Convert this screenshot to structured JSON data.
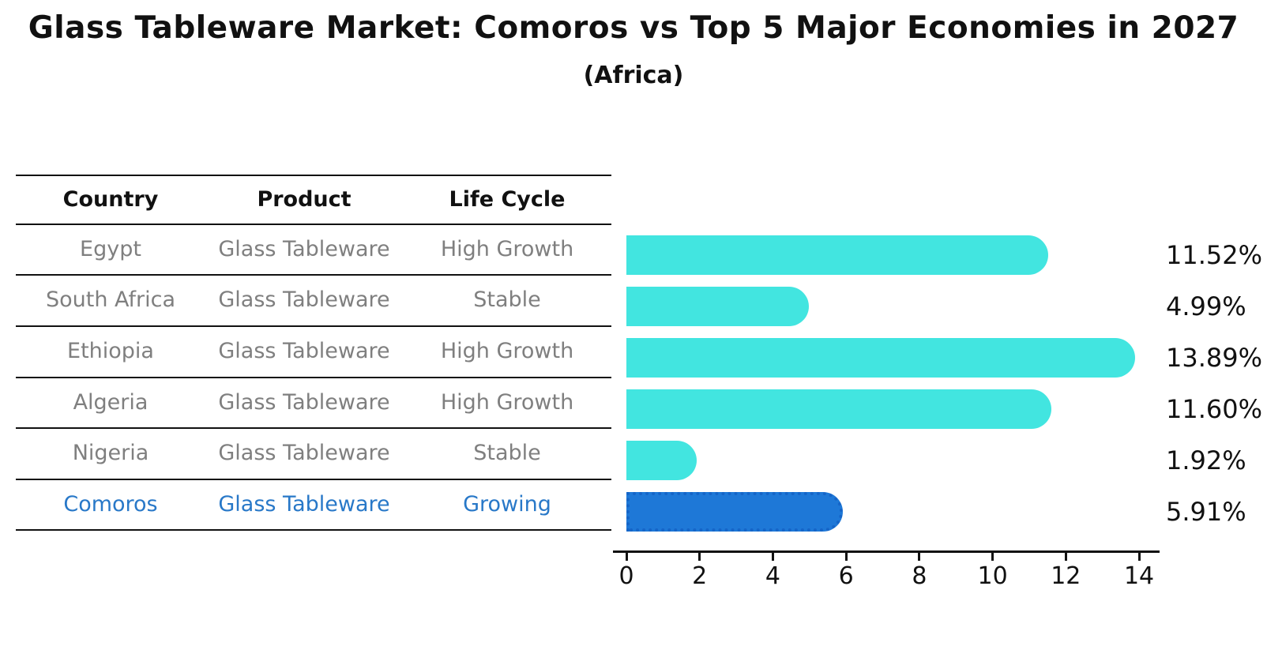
{
  "title": "Glass Tableware Market: Comoros vs Top 5 Major Economies in 2027",
  "subtitle": "(Africa)",
  "table": {
    "headers": [
      "Country",
      "Product",
      "Life Cycle"
    ],
    "rows": [
      {
        "country": "Egypt",
        "product": "Glass Tableware",
        "life_cycle": "High Growth",
        "highlighted": false
      },
      {
        "country": "South Africa",
        "product": "Glass Tableware",
        "life_cycle": "Stable",
        "highlighted": false
      },
      {
        "country": "Ethiopia",
        "product": "Glass Tableware",
        "life_cycle": "High Growth",
        "highlighted": false
      },
      {
        "country": "Algeria",
        "product": "Glass Tableware",
        "life_cycle": "High Growth",
        "highlighted": false
      },
      {
        "country": "Nigeria",
        "product": "Glass Tableware",
        "life_cycle": "Stable",
        "highlighted": false
      },
      {
        "country": "Comoros",
        "product": "Glass Tableware",
        "life_cycle": "Growing",
        "highlighted": true
      }
    ]
  },
  "chart_data": {
    "type": "bar",
    "orientation": "horizontal",
    "title": "Glass Tableware Market: Comoros vs Top 5 Major Economies in 2027",
    "subtitle": "(Africa)",
    "categories": [
      "Egypt",
      "South Africa",
      "Ethiopia",
      "Algeria",
      "Nigeria",
      "Comoros"
    ],
    "values": [
      11.52,
      4.99,
      13.89,
      11.6,
      1.92,
      5.91
    ],
    "value_labels": [
      "11.52%",
      "4.99%",
      "13.89%",
      "11.60%",
      "1.92%",
      "5.91%"
    ],
    "unit": "percent",
    "x_ticks": [
      "0",
      "2",
      "4",
      "6",
      "8",
      "10",
      "12",
      "14"
    ],
    "xlim": [
      0,
      14.56
    ],
    "grid": false,
    "legend": "none",
    "highlight_index": 5
  },
  "colors": {
    "background": "#ffffff",
    "bar": "#42E5E0",
    "highlight_bar": "#1E78D7",
    "highlight_border": "#1565C8",
    "highlight_text": "#2878C8",
    "row_text": "#7f7f7f",
    "header_text": "#111111",
    "axis": "#111111"
  }
}
